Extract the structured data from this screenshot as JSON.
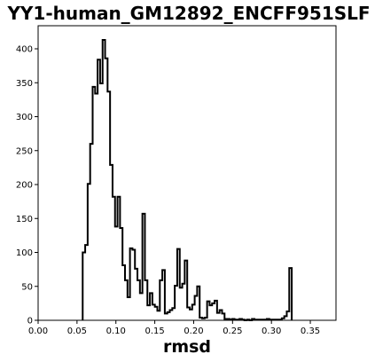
{
  "chart_data": {
    "type": "histogram",
    "title": "YY1-human_GM12892_ENCFF951SLF",
    "xlabel": "rmsd",
    "ylabel": "",
    "xlim": [
      0.0,
      0.383
    ],
    "ylim": [
      0,
      434
    ],
    "xticks": [
      "0.00",
      "0.05",
      "0.10",
      "0.15",
      "0.20",
      "0.25",
      "0.30",
      "0.35"
    ],
    "xtick_values": [
      0.0,
      0.05,
      0.1,
      0.15,
      0.2,
      0.25,
      0.3,
      0.35
    ],
    "yticks": [
      "0",
      "50",
      "100",
      "150",
      "200",
      "250",
      "300",
      "350",
      "400"
    ],
    "ytick_values": [
      0,
      50,
      100,
      150,
      200,
      250,
      300,
      350,
      400
    ],
    "grid": false,
    "legend": "none",
    "histtype": "step",
    "line_color": "#000000",
    "bin_start": 0.0573,
    "bin_width": 0.0032,
    "counts": [
      100,
      111,
      201,
      260,
      344,
      334,
      384,
      349,
      413,
      386,
      337,
      229,
      182,
      138,
      182,
      136,
      81,
      59,
      34,
      106,
      104,
      76,
      59,
      40,
      157,
      59,
      22,
      40,
      23,
      20,
      14,
      59,
      74,
      10,
      12,
      15,
      18,
      51,
      105,
      48,
      54,
      88,
      19,
      16,
      23,
      36,
      50,
      4,
      3,
      4,
      28,
      22,
      25,
      29,
      11,
      15,
      10,
      2,
      2,
      1,
      2,
      1,
      1,
      2,
      1,
      0,
      1,
      0,
      2,
      1,
      1,
      1,
      1,
      1,
      2,
      1,
      1,
      1,
      1,
      1,
      3,
      6,
      13,
      77
    ]
  }
}
